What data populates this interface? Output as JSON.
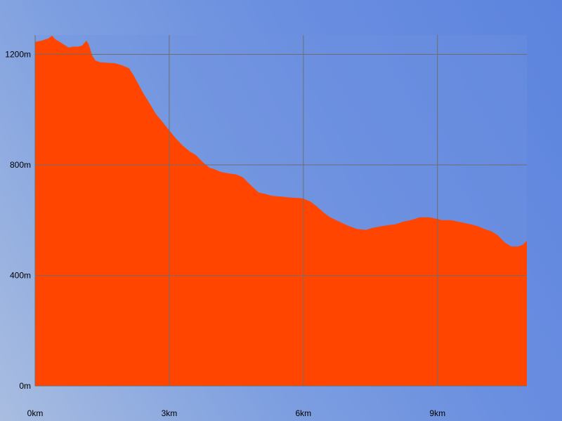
{
  "chart_data": {
    "type": "area",
    "title": "",
    "xlabel": "",
    "ylabel": "",
    "xlim": [
      0,
      11
    ],
    "ylim": [
      0,
      1270
    ],
    "x_ticks": [
      {
        "value": 0,
        "label": "0km"
      },
      {
        "value": 3,
        "label": "3km"
      },
      {
        "value": 6,
        "label": "6km"
      },
      {
        "value": 9,
        "label": "9km"
      }
    ],
    "y_ticks": [
      {
        "value": 0,
        "label": "0m"
      },
      {
        "value": 400,
        "label": "400m"
      },
      {
        "value": 800,
        "label": "800m"
      },
      {
        "value": 1200,
        "label": "1200m"
      }
    ],
    "grid": true,
    "fill_color": "#ff4500",
    "grid_color": "#6e6e6e",
    "series": [
      {
        "x": [
          0,
          0.15,
          0.3,
          0.38,
          0.45,
          0.55,
          0.65,
          0.75,
          0.85,
          0.95,
          1.05,
          1.15,
          1.2,
          1.28,
          1.35,
          1.45,
          1.6,
          1.8,
          1.95,
          2.1,
          2.2,
          2.3,
          2.4,
          2.55,
          2.7,
          2.85,
          3.0,
          3.15,
          3.3,
          3.45,
          3.6,
          3.75,
          3.9,
          4.0,
          4.15,
          4.3,
          4.5,
          4.65,
          4.75,
          4.9,
          5.0,
          5.15,
          5.3,
          5.5,
          5.7,
          5.9,
          6.0,
          6.15,
          6.3,
          6.45,
          6.6,
          6.8,
          7.0,
          7.2,
          7.4,
          7.55,
          7.75,
          7.9,
          8.05,
          8.25,
          8.45,
          8.6,
          8.8,
          8.95,
          9.1,
          9.3,
          9.45,
          9.6,
          9.75,
          9.9,
          10.05,
          10.2,
          10.35,
          10.5,
          10.65,
          10.8,
          10.9,
          11.0
        ],
        "y": [
          1245,
          1250,
          1258,
          1268,
          1255,
          1245,
          1235,
          1225,
          1228,
          1228,
          1232,
          1250,
          1235,
          1195,
          1178,
          1172,
          1170,
          1168,
          1160,
          1150,
          1125,
          1095,
          1065,
          1025,
          985,
          955,
          925,
          895,
          870,
          850,
          835,
          810,
          790,
          785,
          775,
          770,
          765,
          755,
          738,
          715,
          700,
          695,
          688,
          685,
          682,
          680,
          678,
          668,
          650,
          628,
          610,
          595,
          580,
          568,
          565,
          572,
          578,
          582,
          585,
          595,
          602,
          610,
          610,
          606,
          600,
          600,
          595,
          590,
          585,
          578,
          568,
          560,
          545,
          520,
          505,
          505,
          510,
          525
        ]
      }
    ]
  }
}
